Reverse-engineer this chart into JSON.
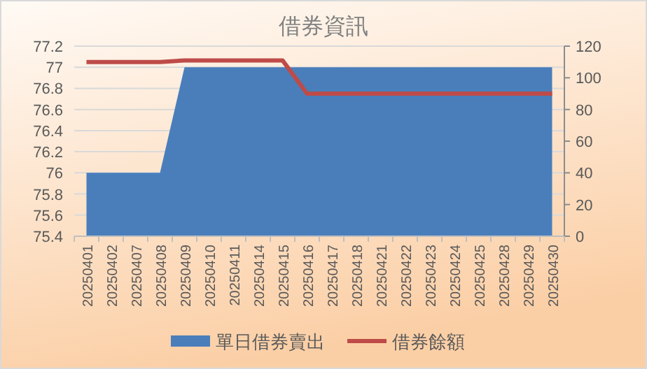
{
  "chart_data": {
    "type": "area",
    "title": "借券資訊",
    "categories": [
      "20250401",
      "20250402",
      "20250407",
      "20250408",
      "20250409",
      "20250410",
      "20250411",
      "20250414",
      "20250415",
      "20250416",
      "20250417",
      "20250418",
      "20250421",
      "20250422",
      "20250423",
      "20250424",
      "20250425",
      "20250428",
      "20250429",
      "20250430"
    ],
    "series": [
      {
        "name": "單日借券賣出",
        "color": "#4a7ebb",
        "values": [
          76,
          76,
          76,
          76,
          77,
          77,
          77,
          77,
          77,
          77,
          77,
          77,
          77,
          77,
          77,
          77,
          77,
          77,
          77,
          77
        ]
      },
      {
        "name": "借券餘額",
        "type": "line",
        "axis": "y2",
        "color": "#be4b48",
        "values": [
          110,
          110,
          110,
          110,
          111,
          111,
          111,
          111,
          111,
          90,
          90,
          90,
          90,
          90,
          90,
          90,
          90,
          90,
          90,
          90
        ]
      }
    ],
    "ylim": [
      75.4,
      77.2
    ],
    "yticks": [
      75.4,
      75.6,
      75.8,
      76,
      76.2,
      76.4,
      76.6,
      76.8,
      77,
      77.2
    ],
    "y2lim": [
      0,
      120
    ],
    "y2ticks": [
      0,
      20,
      40,
      60,
      80,
      100,
      120
    ],
    "grid": "y",
    "legend": "bottom"
  }
}
